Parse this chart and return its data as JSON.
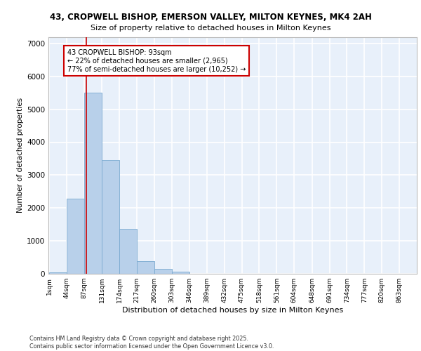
{
  "title_line1": "43, CROPWELL BISHOP, EMERSON VALLEY, MILTON KEYNES, MK4 2AH",
  "title_line2": "Size of property relative to detached houses in Milton Keynes",
  "xlabel": "Distribution of detached houses by size in Milton Keynes",
  "ylabel": "Number of detached properties",
  "bar_color": "#b8d0ea",
  "bar_edge_color": "#7aaad0",
  "background_color": "#e8f0fa",
  "grid_color": "#ffffff",
  "annotation_text": "43 CROPWELL BISHOP: 93sqm\n← 22% of detached houses are smaller (2,965)\n77% of semi-detached houses are larger (10,252) →",
  "vline_x": 93,
  "vline_color": "#cc0000",
  "annotation_box_color": "#cc0000",
  "footer_line1": "Contains HM Land Registry data © Crown copyright and database right 2025.",
  "footer_line2": "Contains public sector information licensed under the Open Government Licence v3.0.",
  "bin_edges": [
    1,
    44,
    87,
    131,
    174,
    217,
    260,
    303,
    346,
    389,
    432,
    475,
    518,
    561,
    604,
    648,
    691,
    734,
    777,
    820,
    863
  ],
  "bin_labels": [
    "1sqm",
    "44sqm",
    "87sqm",
    "131sqm",
    "174sqm",
    "217sqm",
    "260sqm",
    "303sqm",
    "346sqm",
    "389sqm",
    "432sqm",
    "475sqm",
    "518sqm",
    "561sqm",
    "604sqm",
    "648sqm",
    "691sqm",
    "734sqm",
    "777sqm",
    "820sqm",
    "863sqm"
  ],
  "bar_heights": [
    50,
    2280,
    5500,
    3450,
    1370,
    390,
    160,
    70,
    5,
    2,
    1,
    0,
    0,
    0,
    0,
    0,
    0,
    0,
    0,
    0
  ],
  "ylim": [
    0,
    7200
  ],
  "yticks": [
    0,
    1000,
    2000,
    3000,
    4000,
    5000,
    6000,
    7000
  ]
}
